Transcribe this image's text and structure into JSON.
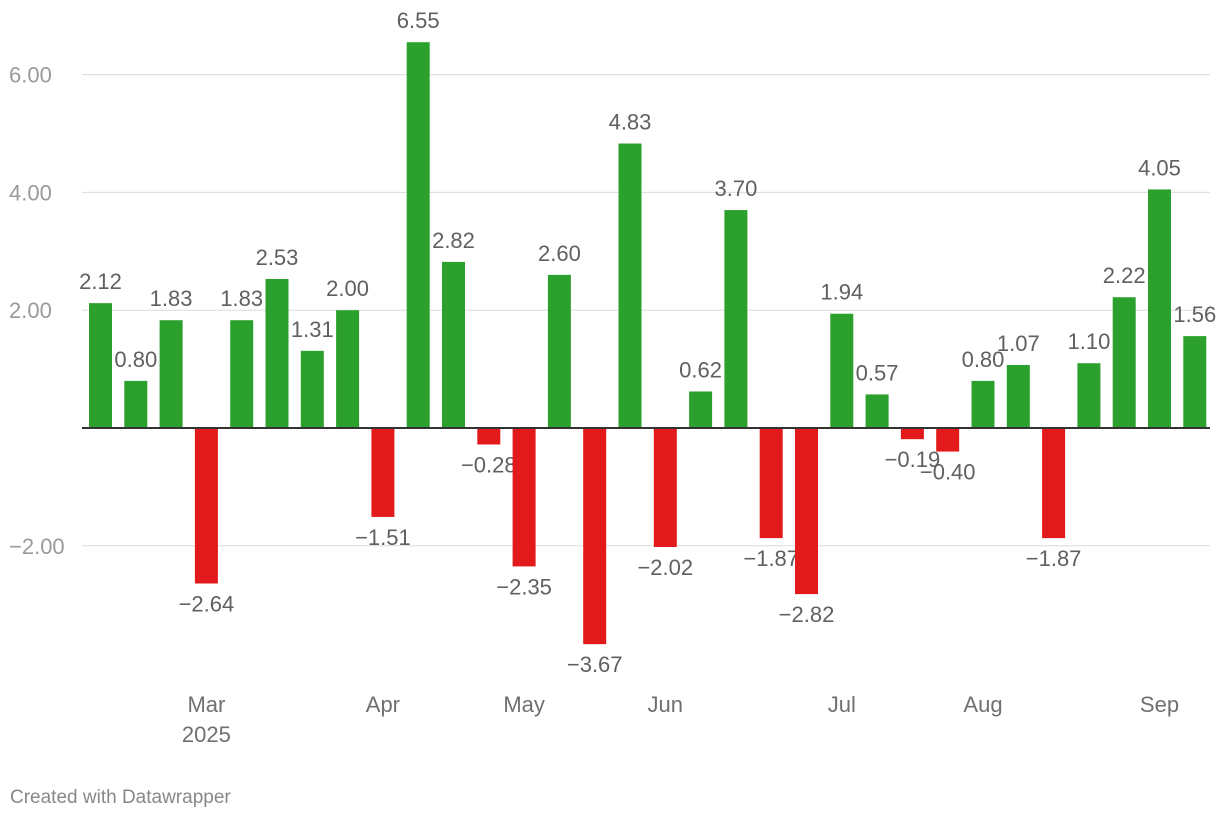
{
  "chart_data": {
    "type": "bar",
    "colors": {
      "positive": "#2ca02c",
      "negative": "#e31a1c",
      "grid": "#dcdcdc",
      "baseline": "#333333"
    },
    "yticks": [
      {
        "value": 6,
        "label": "6.00"
      },
      {
        "value": 4,
        "label": "4.00"
      },
      {
        "value": 2,
        "label": "2.00"
      },
      {
        "value": -2,
        "label": "−2.00"
      }
    ],
    "ylim": [
      -4.35,
      6.55
    ],
    "grid": true,
    "xticks": [
      {
        "index": 3,
        "label": "Mar",
        "sublabel": "2025"
      },
      {
        "index": 8,
        "label": "Apr",
        "sublabel": ""
      },
      {
        "index": 12,
        "label": "May",
        "sublabel": ""
      },
      {
        "index": 16,
        "label": "Jun",
        "sublabel": ""
      },
      {
        "index": 21,
        "label": "Jul",
        "sublabel": ""
      },
      {
        "index": 25,
        "label": "Aug",
        "sublabel": ""
      },
      {
        "index": 30,
        "label": "Sep",
        "sublabel": ""
      }
    ],
    "values": [
      2.12,
      0.8,
      1.83,
      -2.64,
      1.83,
      2.53,
      1.31,
      2.0,
      -1.51,
      6.55,
      2.82,
      -0.28,
      -2.35,
      2.6,
      -3.67,
      4.83,
      -2.02,
      0.62,
      3.7,
      -1.87,
      -2.82,
      1.94,
      0.57,
      -0.19,
      -0.4,
      0.8,
      1.07,
      -1.87,
      1.1,
      2.22,
      4.05,
      1.56
    ],
    "labels": [
      "2.12",
      "0.80",
      "1.83",
      "−2.64",
      "1.83",
      "2.53",
      "1.31",
      "2.00",
      "−1.51",
      "6.55",
      "2.82",
      "−0.28",
      "−2.35",
      "2.60",
      "−3.67",
      "4.83",
      "−2.02",
      "0.62",
      "3.70",
      "−1.87",
      "−2.82",
      "1.94",
      "0.57",
      "−0.19",
      "−0.40",
      "0.80",
      "1.07",
      "−1.87",
      "1.10",
      "2.22",
      "4.05",
      "1.56"
    ]
  },
  "footer": {
    "credit": "Created with Datawrapper"
  }
}
